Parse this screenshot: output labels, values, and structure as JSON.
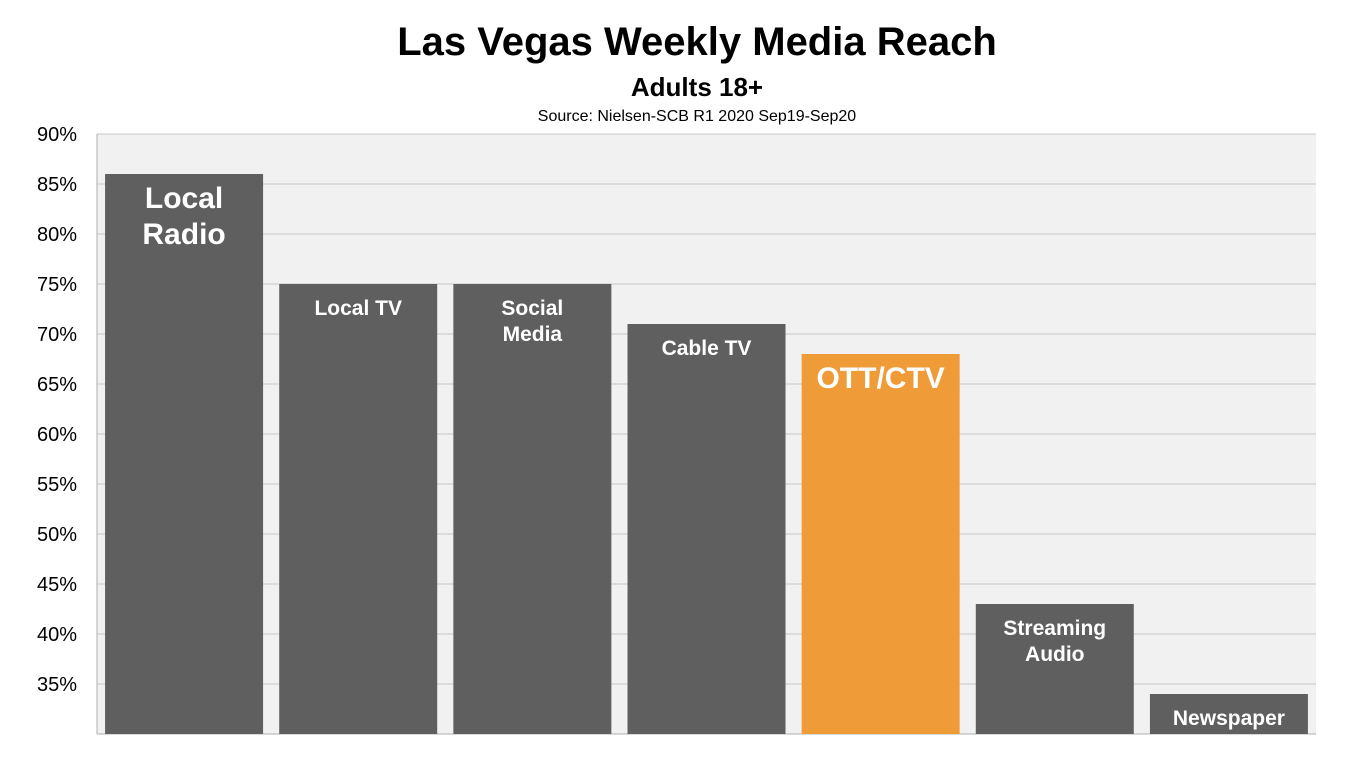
{
  "chart_data": {
    "type": "bar",
    "title": "Las Vegas Weekly Media Reach",
    "subtitle": "Adults 18+",
    "source": "Source: Nielsen-SCB R1 2020 Sep19-Sep20",
    "categories": [
      "Local Radio",
      "Local TV",
      "Social Media",
      "Cable TV",
      "OTT/CTV",
      "Streaming Audio",
      "Newspaper"
    ],
    "category_label_lines": [
      [
        "Local",
        "Radio"
      ],
      [
        "Local TV"
      ],
      [
        "Social",
        "Media"
      ],
      [
        "Cable TV"
      ],
      [
        "OTT/CTV"
      ],
      [
        "Streaming",
        "Audio"
      ],
      [
        "Newspaper"
      ]
    ],
    "values": [
      86,
      75,
      75,
      71,
      68,
      43,
      34
    ],
    "ylim": [
      30,
      90
    ],
    "yticks": [
      35,
      40,
      45,
      50,
      55,
      60,
      65,
      70,
      75,
      80,
      85,
      90
    ],
    "ytick_labels": [
      "35%",
      "40%",
      "45%",
      "50%",
      "55%",
      "60%",
      "65%",
      "70%",
      "75%",
      "80%",
      "85%",
      "90%"
    ],
    "grid": true,
    "legend": "none",
    "colors": {
      "bar": "#5f5f5f",
      "highlight": "#ef9b38",
      "plot_bg": "#f1f1f2",
      "grid": "#c8c8c8"
    },
    "highlight_index": 4
  }
}
